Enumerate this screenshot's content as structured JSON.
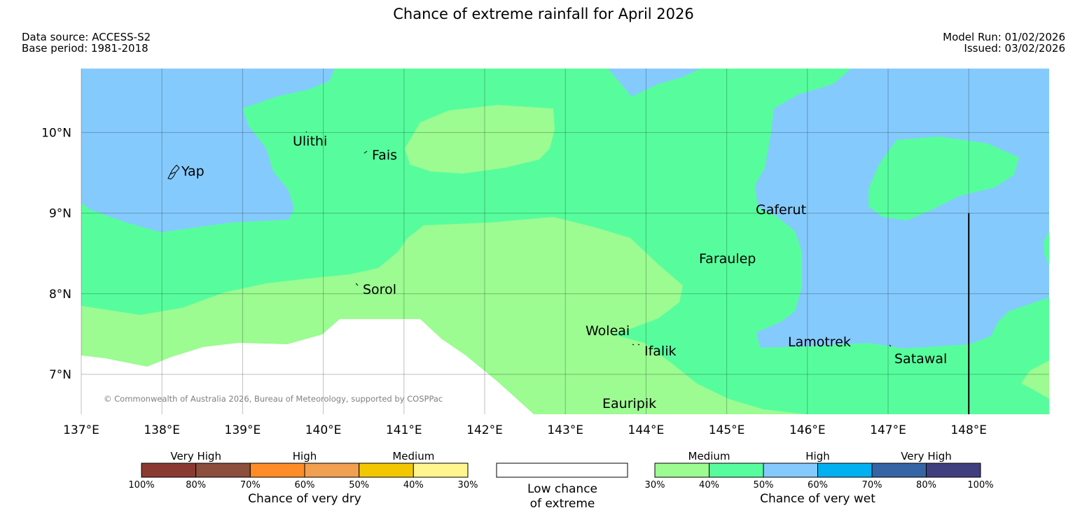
{
  "title": "Chance of extreme rainfall for April 2026",
  "header": {
    "data_source": "Data source: ACCESS-S2",
    "base_period": "Base period: 1981-2018",
    "model_run": "Model Run: 01/02/2026",
    "issued": "Issued: 03/02/2026"
  },
  "map": {
    "lon_range": [
      137,
      149
    ],
    "lat_range": [
      6.5,
      10.8
    ],
    "lon_ticks": [
      {
        "value": 137,
        "label": "137°E"
      },
      {
        "value": 138,
        "label": "138°E"
      },
      {
        "value": 139,
        "label": "139°E"
      },
      {
        "value": 140,
        "label": "140°E"
      },
      {
        "value": 141,
        "label": "141°E"
      },
      {
        "value": 142,
        "label": "142°E"
      },
      {
        "value": 143,
        "label": "143°E"
      },
      {
        "value": 144,
        "label": "144°E"
      },
      {
        "value": 145,
        "label": "145°E"
      },
      {
        "value": 146,
        "label": "146°E"
      },
      {
        "value": 147,
        "label": "147°E"
      },
      {
        "value": 148,
        "label": "148°E"
      }
    ],
    "lat_ticks": [
      {
        "value": 10,
        "label": "10°N"
      },
      {
        "value": 9,
        "label": "9°N"
      },
      {
        "value": 8,
        "label": "8°N"
      },
      {
        "value": 7,
        "label": "7°N"
      }
    ],
    "boundary_line_lon": 148,
    "boundary_line_lat_range": [
      6.5,
      9.0
    ],
    "places": [
      {
        "name": "Yap",
        "lon": 138.1,
        "lat": 9.5
      },
      {
        "name": "Ulithi",
        "lon": 139.75,
        "lat": 9.95
      },
      {
        "name": "Fais",
        "lon": 140.52,
        "lat": 9.75
      },
      {
        "name": "Gaferut",
        "lon": 145.4,
        "lat": 9.1
      },
      {
        "name": "Faraulep",
        "lon": 144.7,
        "lat": 8.5
      },
      {
        "name": "Sorol",
        "lon": 140.4,
        "lat": 8.1
      },
      {
        "name": "Woleai",
        "lon": 143.3,
        "lat": 7.55
      },
      {
        "name": "Ifalik",
        "lon": 143.9,
        "lat": 7.35
      },
      {
        "name": "Lamotrek",
        "lon": 145.8,
        "lat": 7.45
      },
      {
        "name": "Satawal",
        "lon": 147.05,
        "lat": 7.3
      },
      {
        "name": "Eauripik",
        "lon": 143.5,
        "lat": 6.65
      }
    ],
    "copyright": "© Commonwealth of Australia 2026, Bureau of Meteorology, supported by COSPPac"
  },
  "legend": {
    "dry": {
      "categories": [
        "Very High",
        "High",
        "Medium"
      ],
      "colors": [
        "#8b3a32",
        "#8c4f3c",
        "#ff8c26",
        "#f0a050",
        "#f2c700",
        "#fff68f"
      ],
      "ticks": [
        "100%",
        "80%",
        "70%",
        "60%",
        "50%",
        "40%",
        "30%"
      ],
      "label": "Chance of very dry"
    },
    "low": {
      "line1": "Low chance",
      "line2": "of extreme"
    },
    "wet": {
      "categories": [
        "Medium",
        "High",
        "Very High"
      ],
      "colors": [
        "#9cfb91",
        "#57fd9d",
        "#85cafd",
        "#00b0f0",
        "#3565a5",
        "#3f3f80"
      ],
      "ticks": [
        "30%",
        "40%",
        "50%",
        "60%",
        "70%",
        "80%",
        "100%"
      ],
      "label": "Chance of very wet"
    }
  },
  "colors": {
    "medium_wet": "#9cfb91",
    "mediumhigh_wet": "#57fd9d",
    "high_wet": "#85cafd",
    "low": "#ffffff"
  }
}
